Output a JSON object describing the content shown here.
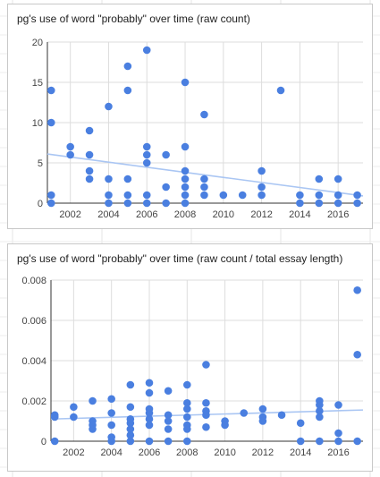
{
  "colors": {
    "point": "#4a7fe0",
    "trend": "#aac6f3",
    "gridline": "#dddddd",
    "axis": "#333333",
    "tick_text": "#444444"
  },
  "chart_data": [
    {
      "type": "scatter",
      "title": "pg's use of word \"probably\" over time (raw count)",
      "xlabel": "",
      "ylabel": "",
      "xlim": [
        2000.8,
        2017.3
      ],
      "ylim": [
        0,
        20
      ],
      "xticks": [
        2002,
        2004,
        2006,
        2008,
        2010,
        2012,
        2014,
        2016
      ],
      "xtick_labels": [
        "2002",
        "2004",
        "2006",
        "2008",
        "2010",
        "2012",
        "2014",
        "2016"
      ],
      "yticks": [
        0,
        5,
        10,
        15,
        20
      ],
      "ytick_labels": [
        "0",
        "5",
        "10",
        "15",
        "20"
      ],
      "grid": true,
      "legend": "none",
      "trendline": {
        "x": [
          2000.8,
          2017.3
        ],
        "y": [
          6.1,
          0.9
        ]
      },
      "points": [
        [
          2001,
          14
        ],
        [
          2001,
          10
        ],
        [
          2001,
          1
        ],
        [
          2001,
          0
        ],
        [
          2002,
          7
        ],
        [
          2002,
          6
        ],
        [
          2003,
          9
        ],
        [
          2003,
          6
        ],
        [
          2003,
          4
        ],
        [
          2003,
          3
        ],
        [
          2004,
          12
        ],
        [
          2004,
          3
        ],
        [
          2004,
          1
        ],
        [
          2004,
          0
        ],
        [
          2005,
          17
        ],
        [
          2005,
          14
        ],
        [
          2005,
          3
        ],
        [
          2005,
          1
        ],
        [
          2005,
          0
        ],
        [
          2006,
          19
        ],
        [
          2006,
          7
        ],
        [
          2006,
          6
        ],
        [
          2006,
          5
        ],
        [
          2006,
          1
        ],
        [
          2006,
          0
        ],
        [
          2007,
          6
        ],
        [
          2007,
          2
        ],
        [
          2007,
          0
        ],
        [
          2008,
          15
        ],
        [
          2008,
          7
        ],
        [
          2008,
          4
        ],
        [
          2008,
          3
        ],
        [
          2008,
          2
        ],
        [
          2008,
          1
        ],
        [
          2008,
          0
        ],
        [
          2009,
          11
        ],
        [
          2009,
          3
        ],
        [
          2009,
          2
        ],
        [
          2009,
          1
        ],
        [
          2010,
          1
        ],
        [
          2011,
          1
        ],
        [
          2012,
          4
        ],
        [
          2012,
          2
        ],
        [
          2012,
          1
        ],
        [
          2013,
          14
        ],
        [
          2014,
          1
        ],
        [
          2014,
          0
        ],
        [
          2015,
          3
        ],
        [
          2015,
          1
        ],
        [
          2015,
          0
        ],
        [
          2016,
          3
        ],
        [
          2016,
          1
        ],
        [
          2016,
          0
        ],
        [
          2017,
          1
        ],
        [
          2017,
          0
        ]
      ]
    },
    {
      "type": "scatter",
      "title": "pg's use of word \"probably\" over time (raw count / total essay length)",
      "xlabel": "",
      "ylabel": "",
      "xlim": [
        2000.8,
        2017.3
      ],
      "ylim": [
        0,
        0.008
      ],
      "xticks": [
        2002,
        2004,
        2006,
        2008,
        2010,
        2012,
        2014,
        2016
      ],
      "xtick_labels": [
        "2002",
        "2004",
        "2006",
        "2008",
        "2010",
        "2012",
        "2014",
        "2016"
      ],
      "yticks": [
        0,
        0.002,
        0.004,
        0.006,
        0.008
      ],
      "ytick_labels": [
        "0",
        "0.002",
        "0.004",
        "0.006",
        "0.008"
      ],
      "grid": true,
      "legend": "none",
      "trendline": {
        "x": [
          2000.8,
          2017.3
        ],
        "y": [
          0.0011,
          0.00155
        ]
      },
      "points": [
        [
          2001,
          0.0013
        ],
        [
          2001,
          0.0012
        ],
        [
          2001,
          0
        ],
        [
          2002,
          0.0017
        ],
        [
          2002,
          0.0012
        ],
        [
          2003,
          0.002
        ],
        [
          2003,
          0.001
        ],
        [
          2003,
          0.0008
        ],
        [
          2003,
          0.0006
        ],
        [
          2004,
          0.0021
        ],
        [
          2004,
          0.0014
        ],
        [
          2004,
          0.0008
        ],
        [
          2004,
          0.0002
        ],
        [
          2004,
          0
        ],
        [
          2005,
          0.0028
        ],
        [
          2005,
          0.0017
        ],
        [
          2005,
          0.0011
        ],
        [
          2005,
          0.0009
        ],
        [
          2005,
          0.0006
        ],
        [
          2005,
          0.0003
        ],
        [
          2005,
          0
        ],
        [
          2006,
          0.0029
        ],
        [
          2006,
          0.0024
        ],
        [
          2006,
          0.0016
        ],
        [
          2006,
          0.0014
        ],
        [
          2006,
          0.0011
        ],
        [
          2006,
          0.0008
        ],
        [
          2006,
          0
        ],
        [
          2007,
          0.0025
        ],
        [
          2007,
          0.0013
        ],
        [
          2007,
          0.001
        ],
        [
          2007,
          0.0006
        ],
        [
          2007,
          0
        ],
        [
          2008,
          0.0028
        ],
        [
          2008,
          0.0019
        ],
        [
          2008,
          0.0016
        ],
        [
          2008,
          0.0012
        ],
        [
          2008,
          0.0008
        ],
        [
          2008,
          0.0006
        ],
        [
          2008,
          0
        ],
        [
          2009,
          0.0038
        ],
        [
          2009,
          0.0019
        ],
        [
          2009,
          0.0015
        ],
        [
          2009,
          0.0013
        ],
        [
          2009,
          0.0007
        ],
        [
          2010,
          0.001
        ],
        [
          2010,
          0.0008
        ],
        [
          2011,
          0.0014
        ],
        [
          2012,
          0.0016
        ],
        [
          2012,
          0.0012
        ],
        [
          2012,
          0.001
        ],
        [
          2013,
          0.0013
        ],
        [
          2014,
          0.0009
        ],
        [
          2014,
          0
        ],
        [
          2015,
          0.002
        ],
        [
          2015,
          0.0018
        ],
        [
          2015,
          0.0015
        ],
        [
          2015,
          0.0012
        ],
        [
          2015,
          0
        ],
        [
          2016,
          0.0018
        ],
        [
          2016,
          0.0004
        ],
        [
          2016,
          0
        ],
        [
          2017,
          0.0075
        ],
        [
          2017,
          0.0043
        ],
        [
          2017,
          0
        ]
      ]
    }
  ]
}
